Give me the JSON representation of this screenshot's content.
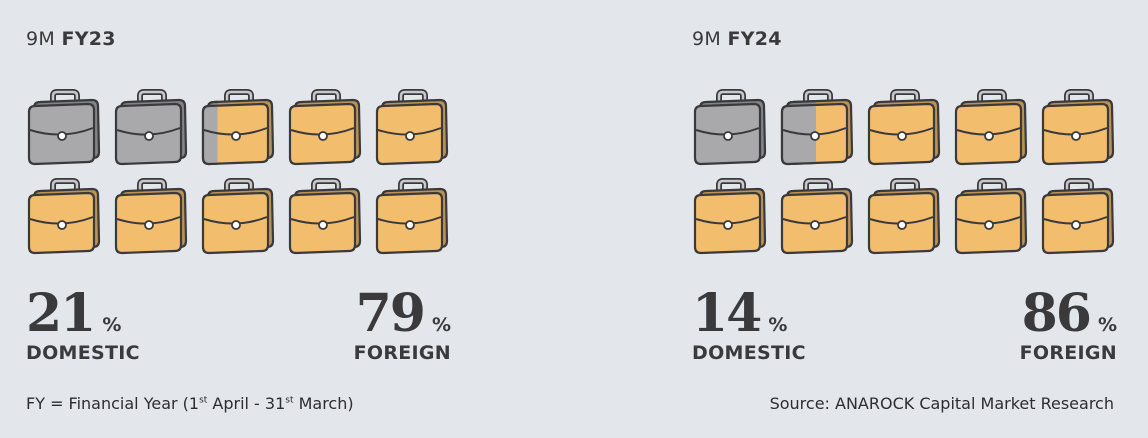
{
  "chart_data": [
    {
      "type": "pictogram",
      "title_prefix": "9M",
      "title_bold": "FY23",
      "series": [
        {
          "name": "DOMESTIC",
          "value": 21,
          "color": "#a9a9ac"
        },
        {
          "name": "FOREIGN",
          "value": 79,
          "color": "#f2bd6d"
        }
      ],
      "icons_total": 10,
      "icon": "briefcase-icon",
      "percent_sign": "%"
    },
    {
      "type": "pictogram",
      "title_prefix": "9M",
      "title_bold": "FY24",
      "series": [
        {
          "name": "DOMESTIC",
          "value": 14,
          "color": "#a9a9ac"
        },
        {
          "name": "FOREIGN",
          "value": 86,
          "color": "#f2bd6d"
        }
      ],
      "icons_total": 10,
      "icon": "briefcase-icon",
      "percent_sign": "%"
    }
  ],
  "footnote": {
    "part1": "FY = Financial Year (1",
    "sup1": "st",
    "part2": " April - 31",
    "sup2": "st",
    "part3": " March)"
  },
  "source": "Source: ANAROCK Capital Market Research"
}
